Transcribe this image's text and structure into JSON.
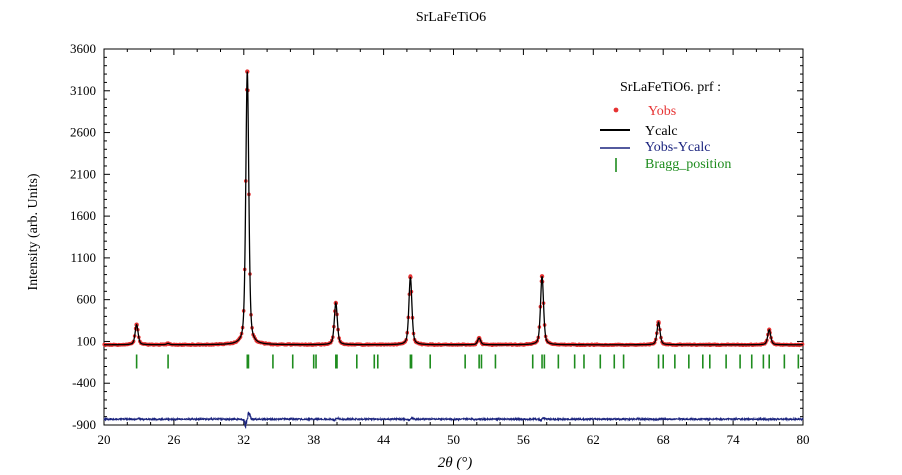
{
  "chart_data": {
    "type": "line",
    "title": "SrLaFeTiO6",
    "xlabel": "2θ (°)",
    "ylabel": "Intensity (arb. Units)",
    "xlim": [
      20,
      80
    ],
    "ylim": [
      -900,
      3600
    ],
    "x_ticks": [
      20,
      26,
      32,
      38,
      44,
      50,
      56,
      62,
      68,
      74,
      80
    ],
    "y_ticks": [
      -900,
      -400,
      100,
      600,
      1100,
      1600,
      2100,
      2600,
      3100,
      3600
    ],
    "legend_title": "SrLaFeTiO6. prf :",
    "legend_position": "top-right",
    "series": [
      {
        "name": "Yobs",
        "style": "points",
        "color": "#e63232"
      },
      {
        "name": "Ycalc",
        "style": "line",
        "color": "#000000"
      },
      {
        "name": "Yobs-Ycalc",
        "style": "line",
        "color": "#1a237e"
      },
      {
        "name": "Bragg_position",
        "style": "ticks",
        "color": "#1e8c1e"
      }
    ],
    "background": 60,
    "difference_baseline": -830,
    "bragg_row": -140,
    "peaks": [
      {
        "x": 22.8,
        "y": 300
      },
      {
        "x": 25.5,
        "y": 75
      },
      {
        "x": 32.3,
        "y": 3330
      },
      {
        "x": 39.9,
        "y": 560
      },
      {
        "x": 46.3,
        "y": 870
      },
      {
        "x": 52.2,
        "y": 140
      },
      {
        "x": 57.6,
        "y": 880
      },
      {
        "x": 67.6,
        "y": 330
      },
      {
        "x": 72.0,
        "y": 60
      },
      {
        "x": 77.1,
        "y": 240
      }
    ],
    "bragg_positions": [
      22.8,
      25.5,
      32.3,
      32.4,
      34.5,
      36.2,
      38.0,
      38.2,
      39.9,
      40.0,
      41.7,
      43.2,
      43.5,
      46.3,
      46.4,
      48.0,
      51.0,
      52.2,
      52.4,
      53.6,
      56.8,
      57.6,
      57.8,
      59.0,
      60.4,
      61.2,
      62.6,
      63.8,
      64.6,
      67.6,
      68.0,
      69.0,
      70.2,
      71.4,
      72.0,
      73.4,
      74.6,
      75.6,
      76.6,
      77.1,
      78.4,
      79.6
    ]
  }
}
